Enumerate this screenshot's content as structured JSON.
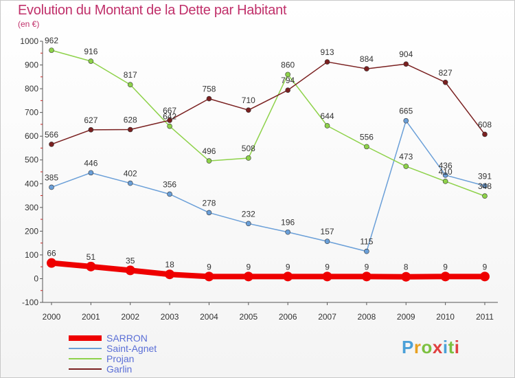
{
  "title": "Evolution du Montant de la Dette par Habitant",
  "subtitle": "(en €)",
  "logo": {
    "parts": [
      "P",
      "r",
      "o",
      "x",
      "i",
      "t",
      "i"
    ]
  },
  "chart_data": {
    "type": "line",
    "categories": [
      "2000",
      "2001",
      "2002",
      "2003",
      "2004",
      "2005",
      "2006",
      "2007",
      "2008",
      "2009",
      "2010",
      "2011"
    ],
    "ylim": [
      -100,
      1000
    ],
    "yticks": [
      "-100",
      "0",
      "100",
      "200",
      "300",
      "400",
      "500",
      "600",
      "700",
      "800",
      "900",
      "1000"
    ],
    "grid": false,
    "legend_position": "bottom-left",
    "series": [
      {
        "name": "SARRON",
        "color": "#ee0000",
        "width": 8,
        "marker": 7,
        "values": [
          66,
          51,
          35,
          18,
          9,
          9,
          9,
          9,
          9,
          8,
          9,
          9
        ]
      },
      {
        "name": "Saint-Agnet",
        "color": "#6a9fd8",
        "width": 1.5,
        "marker": 3.5,
        "values": [
          385,
          446,
          402,
          356,
          278,
          232,
          196,
          157,
          115,
          665,
          436,
          391
        ]
      },
      {
        "name": "Projan",
        "color": "#8ed24a",
        "width": 1.5,
        "marker": 3.5,
        "values": [
          962,
          916,
          817,
          642,
          496,
          508,
          860,
          644,
          556,
          473,
          410,
          348
        ]
      },
      {
        "name": "Garlin",
        "color": "#7a2020",
        "width": 1.5,
        "marker": 3.5,
        "values": [
          566,
          627,
          628,
          667,
          758,
          710,
          794,
          913,
          884,
          904,
          827,
          608
        ]
      }
    ]
  }
}
